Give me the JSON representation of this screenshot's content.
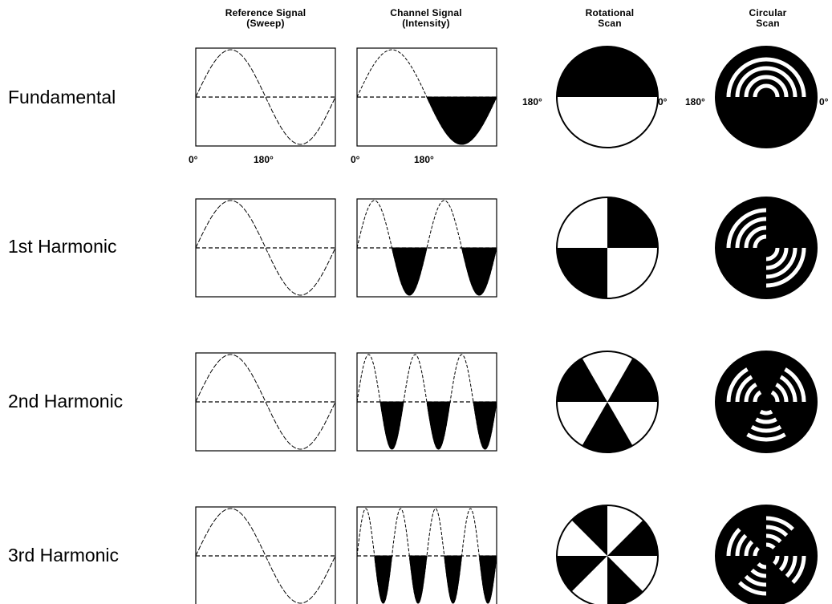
{
  "headers": {
    "reference": [
      "Reference Signal",
      "(Sweep)"
    ],
    "channel": [
      "Channel Signal",
      "(Intensity)"
    ],
    "rotational": [
      "Rotational",
      "Scan"
    ],
    "circular": [
      "Circular",
      "Scan"
    ]
  },
  "rows": [
    {
      "label": "Fundamental",
      "harmonic": 1
    },
    {
      "label": "1st Harmonic",
      "harmonic": 2
    },
    {
      "label": "2nd Harmonic",
      "harmonic": 3
    },
    {
      "label": "3rd Harmonic",
      "harmonic": 4
    }
  ],
  "tick_labels": {
    "zero": "0°",
    "one_eighty": "180°"
  },
  "colors": {
    "ink": "#000000",
    "paper": "#ffffff"
  }
}
